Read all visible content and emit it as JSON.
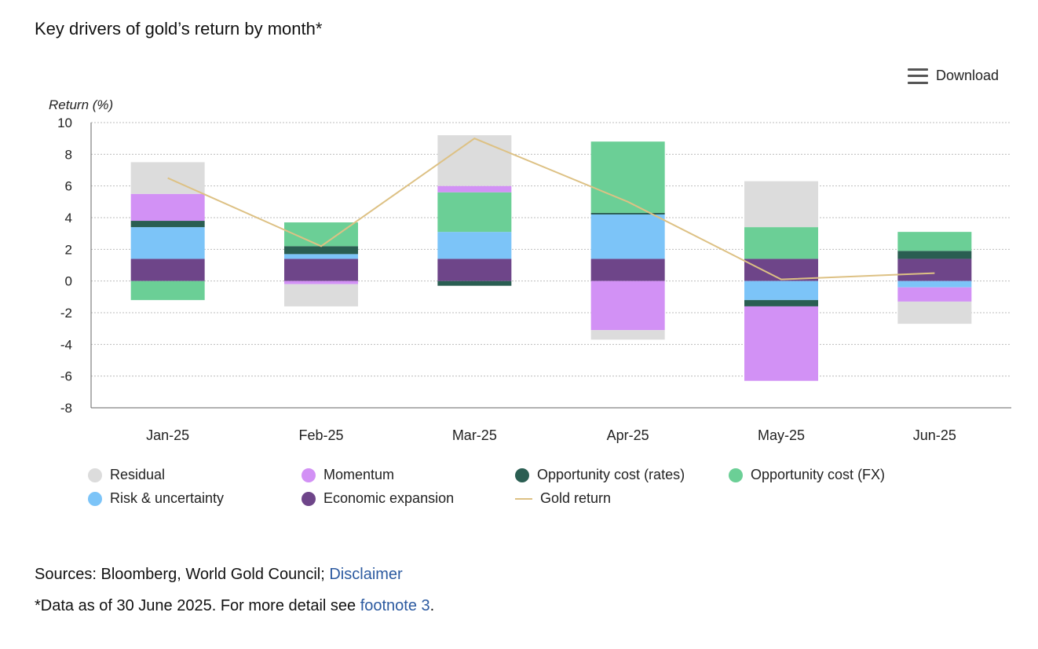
{
  "title": "Key drivers of gold’s return by month*",
  "download_label": "Download",
  "sources": {
    "prefix": "Sources: Bloomberg, World Gold Council; ",
    "link": "Disclaimer"
  },
  "note": {
    "prefix": "*Data as of 30 June 2025. For more detail see ",
    "link": "footnote 3",
    "suffix": "."
  },
  "chart_data": {
    "type": "bar",
    "stacked": true,
    "ylabel": "Return (%)",
    "ylim": [
      -8,
      10
    ],
    "yticks": [
      10,
      8,
      6,
      4,
      2,
      0,
      -2,
      -4,
      -6,
      -8
    ],
    "grid": true,
    "legend_position": "bottom",
    "categories": [
      "Jan-25",
      "Feb-25",
      "Mar-25",
      "Apr-25",
      "May-25",
      "Jun-25"
    ],
    "series": [
      {
        "name": "Economic expansion",
        "color": "#6e4589",
        "values": [
          1.4,
          1.4,
          1.4,
          1.4,
          1.4,
          1.4
        ]
      },
      {
        "name": "Risk & uncertainty",
        "color": "#7cc4f8",
        "values": [
          2.0,
          0.3,
          1.7,
          2.8,
          -1.2,
          -0.4
        ]
      },
      {
        "name": "Opportunity cost (rates)",
        "color": "#2a5e52",
        "values": [
          0.4,
          0.5,
          -0.3,
          0.1,
          -0.4,
          0.5
        ]
      },
      {
        "name": "Opportunity cost (FX)",
        "color": "#6bcf96",
        "values": [
          -1.2,
          1.5,
          2.5,
          4.5,
          2.0,
          1.2
        ]
      },
      {
        "name": "Momentum",
        "color": "#d291f5",
        "values": [
          1.7,
          -0.2,
          0.4,
          -3.1,
          -4.7,
          -0.9
        ]
      },
      {
        "name": "Residual",
        "color": "#dcdcdc",
        "values": [
          2.0,
          -1.4,
          3.2,
          -0.6,
          2.9,
          -1.4
        ]
      }
    ],
    "line": {
      "name": "Gold return",
      "color": "#ddc184",
      "values": [
        6.5,
        2.2,
        9.0,
        5.0,
        0.1,
        0.5
      ]
    },
    "legend": [
      {
        "name": "Residual",
        "color": "#dcdcdc",
        "kind": "dot"
      },
      {
        "name": "Momentum",
        "color": "#d291f5",
        "kind": "dot"
      },
      {
        "name": "Opportunity cost (rates)",
        "color": "#2a5e52",
        "kind": "dot"
      },
      {
        "name": "Opportunity cost (FX)",
        "color": "#6bcf96",
        "kind": "dot"
      },
      {
        "name": "Risk & uncertainty",
        "color": "#7cc4f8",
        "kind": "dot"
      },
      {
        "name": "Economic expansion",
        "color": "#6e4589",
        "kind": "dot"
      },
      {
        "name": "Gold return",
        "color": "#ddc184",
        "kind": "line"
      }
    ]
  }
}
